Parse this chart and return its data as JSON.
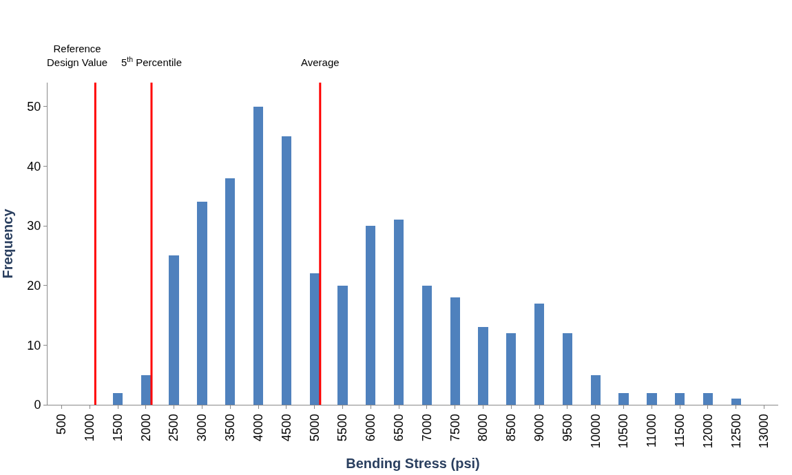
{
  "chart_data": {
    "type": "bar",
    "xlabel": "Bending Stress (psi)",
    "ylabel": "Frequency",
    "x": [
      500,
      1000,
      1500,
      2000,
      2500,
      3000,
      3500,
      4000,
      4500,
      5000,
      5500,
      6000,
      6500,
      7000,
      7500,
      8000,
      8500,
      9000,
      9500,
      10000,
      10500,
      11000,
      11500,
      12000,
      12500,
      13000
    ],
    "values": [
      0,
      0,
      2,
      5,
      25,
      34,
      38,
      50,
      45,
      22,
      20,
      30,
      31,
      20,
      18,
      13,
      12,
      17,
      12,
      5,
      2,
      2,
      2,
      2,
      1,
      0
    ],
    "color": "#4f81bd",
    "xlim": [
      250,
      13250
    ],
    "xticks": [
      500,
      1000,
      1500,
      2000,
      2500,
      3000,
      3500,
      4000,
      4500,
      5000,
      5500,
      6000,
      6500,
      7000,
      7500,
      8000,
      8500,
      9000,
      9500,
      10000,
      10500,
      11000,
      11500,
      12000,
      12500,
      13000
    ],
    "ylim": [
      0,
      54
    ],
    "yticks": [
      0,
      10,
      20,
      30,
      40,
      50
    ],
    "ref_lines": [
      {
        "axis": "x",
        "value": 1100,
        "label": "Reference\nDesign Value",
        "color": "#ff0000"
      },
      {
        "axis": "x",
        "value": 2100,
        "label": "5$^{th}$ Percentile",
        "color": "#ff0000"
      },
      {
        "axis": "x",
        "value": 5100,
        "label": "Average",
        "color": "#ff0000"
      }
    ]
  }
}
